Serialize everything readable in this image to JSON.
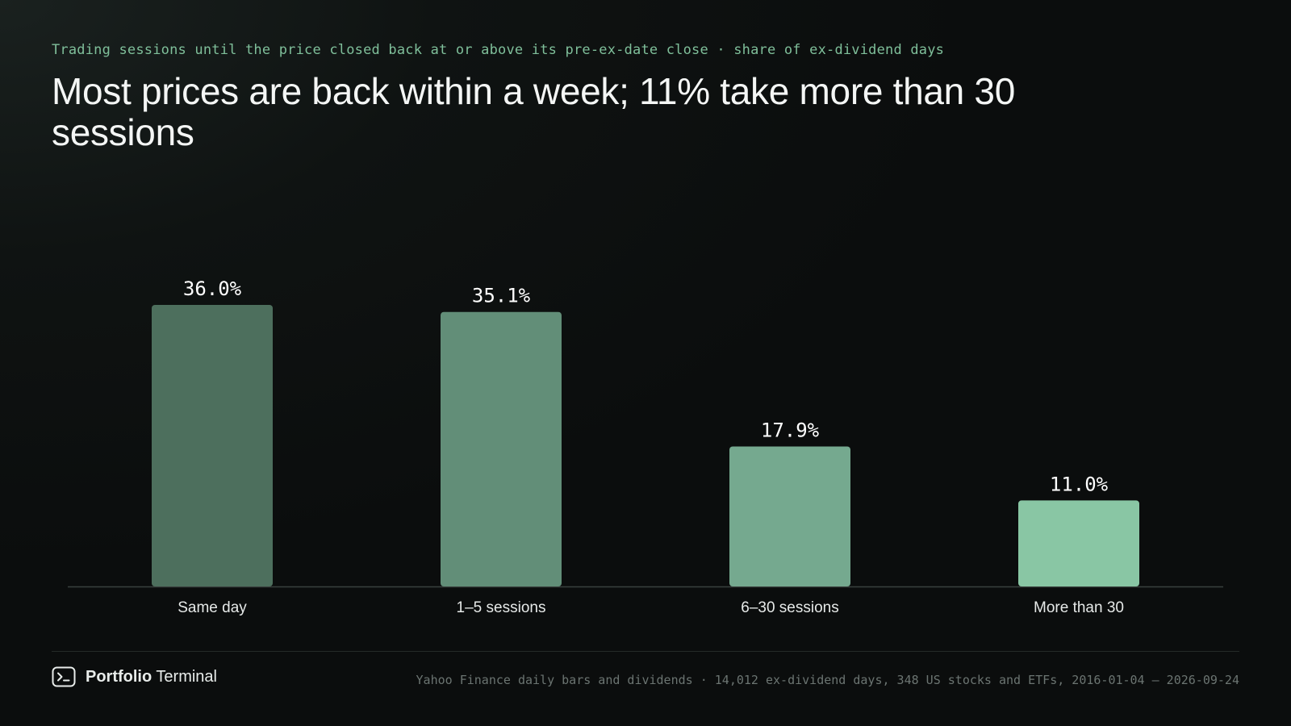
{
  "header": {
    "subtitle": "Trading sessions until the price closed back at or above its pre-ex-date close · share of ex-dividend days",
    "title": "Most prices are back within a week; 11% take more than 30 sessions"
  },
  "chart_data": {
    "type": "bar",
    "categories": [
      "Same day",
      "1–5 sessions",
      "6–30 sessions",
      "More than 30"
    ],
    "values": [
      36.0,
      35.1,
      17.9,
      11.0
    ],
    "data_labels": [
      "36.0%",
      "35.1%",
      "17.9%",
      "11.0%"
    ],
    "unit": "%",
    "ylim": [
      0,
      36.0
    ],
    "grid": false,
    "colors": [
      "#4d6f5d",
      "#628e78",
      "#75a98f",
      "#89c6a4"
    ]
  },
  "colors": {
    "accent": "#7fbf9a",
    "axis": "#3a403e",
    "label": "#e6e9e8"
  },
  "footer": {
    "brand_bold": "Portfolio",
    "brand_light": "Terminal",
    "brand_icon": "terminal-prompt-icon",
    "source": "Yahoo Finance daily bars and dividends · 14,012 ex-dividend days, 348 US stocks and ETFs, 2016-01-04 – 2026-09-24"
  }
}
